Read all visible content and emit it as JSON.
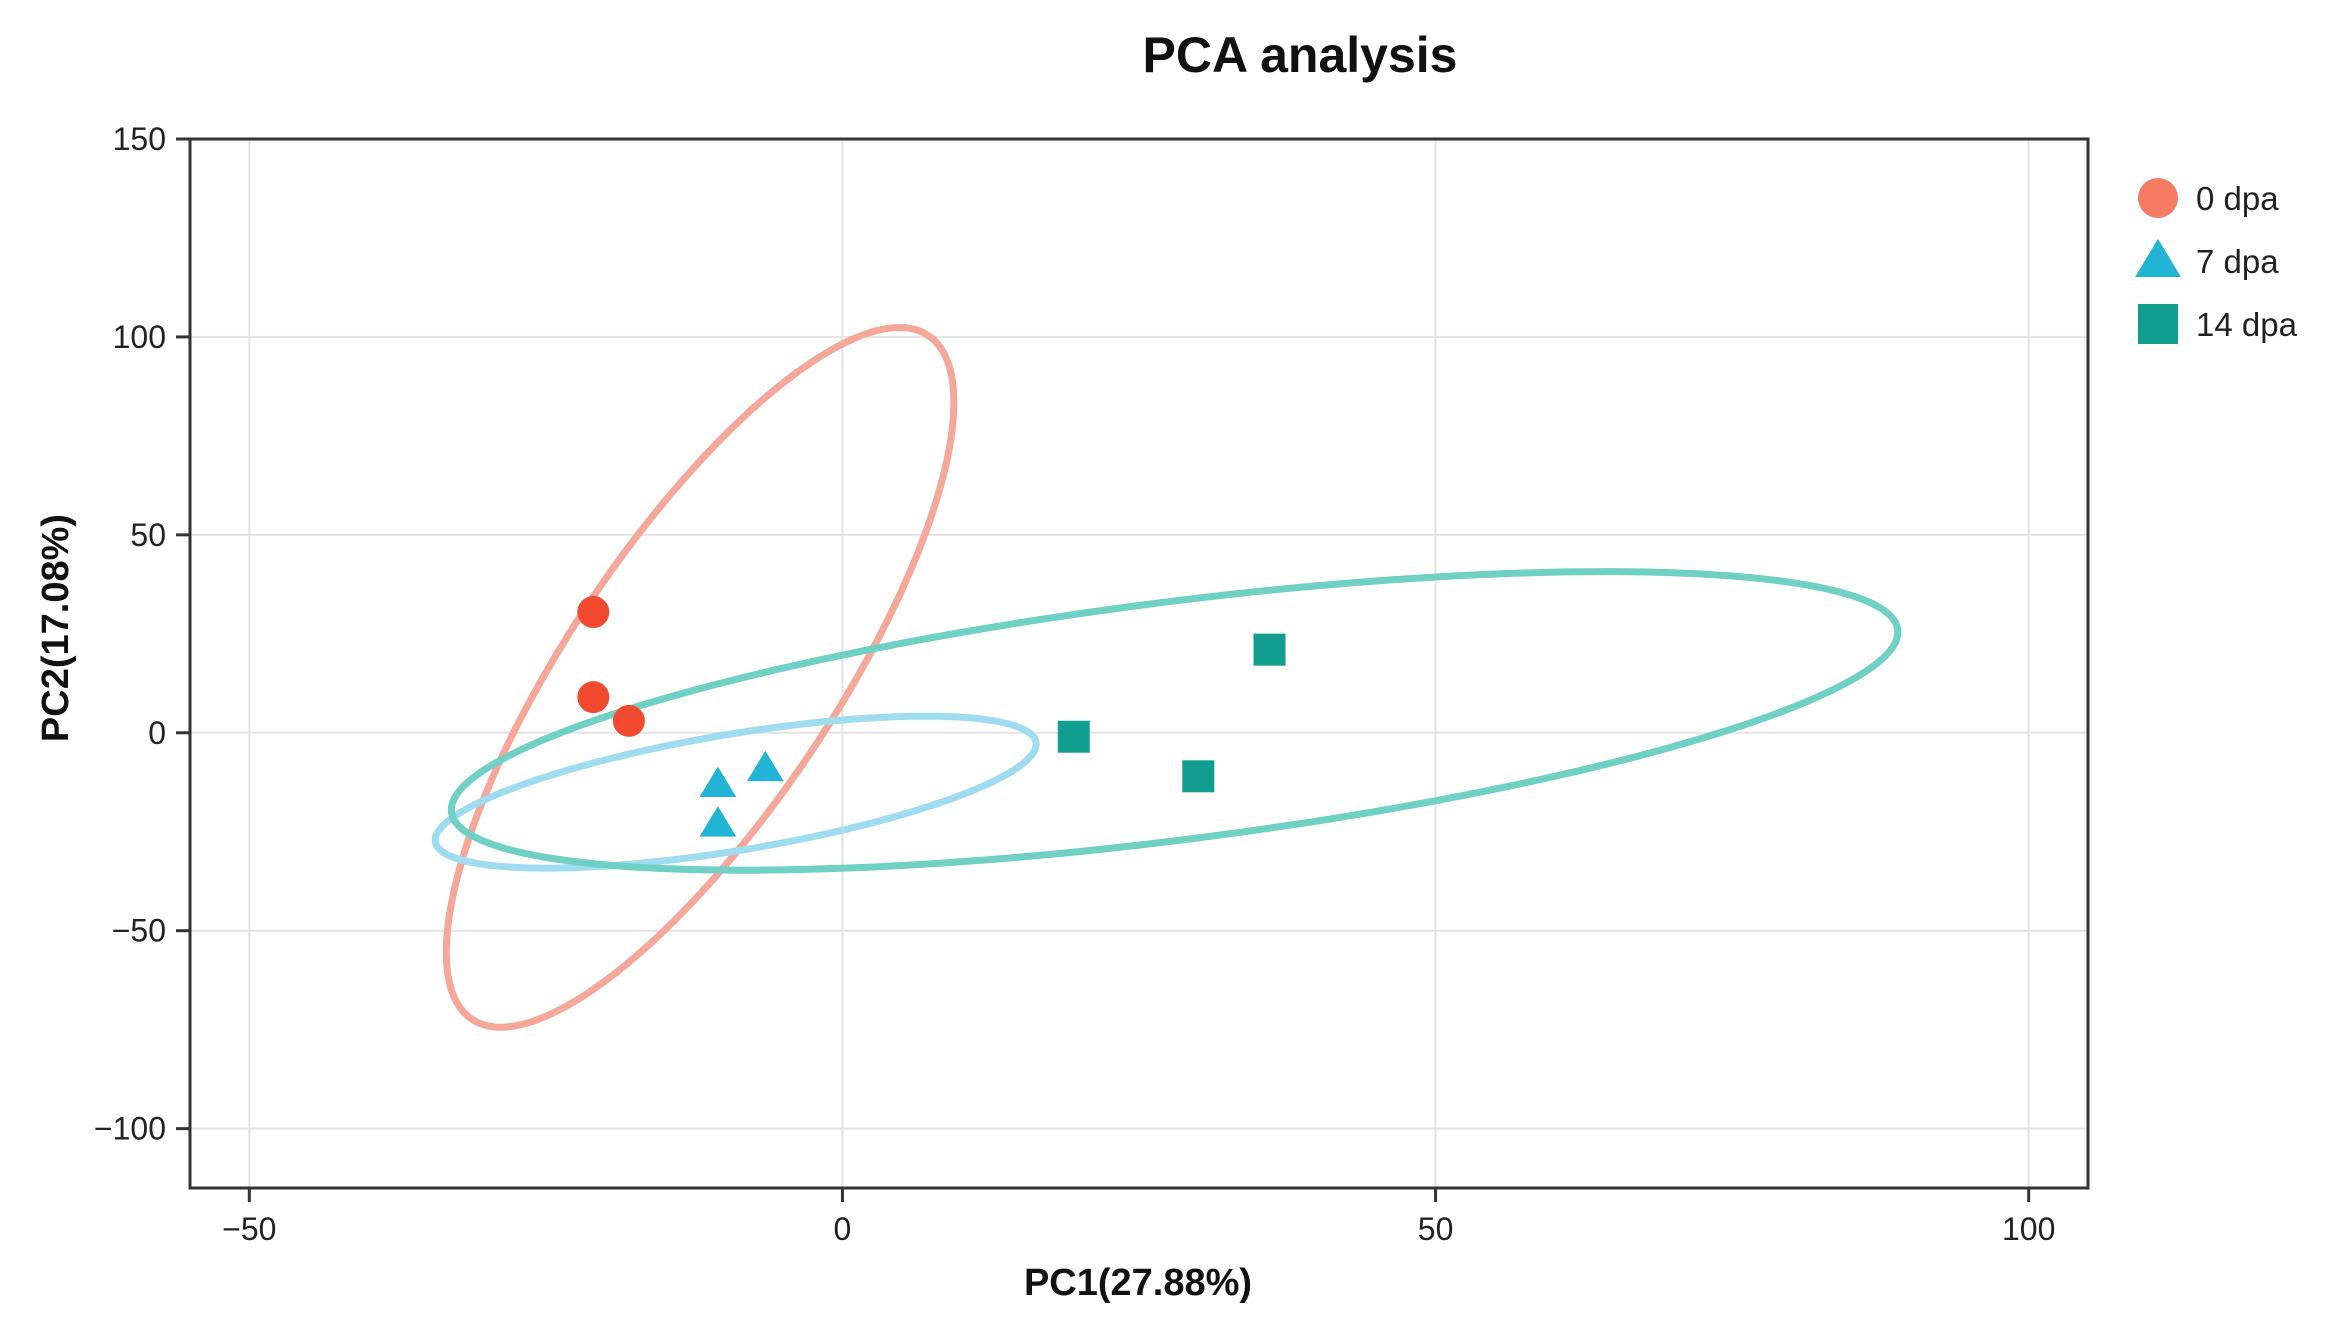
{
  "chart_data": {
    "type": "scatter",
    "title": "PCA analysis",
    "xlabel": "PC1(27.88%)",
    "ylabel": "PC2(17.08%)",
    "xlim": [
      -55,
      105
    ],
    "ylim": [
      -115,
      150
    ],
    "xticks": [
      -50,
      0,
      50,
      100
    ],
    "yticks": [
      -100,
      -50,
      0,
      50,
      100,
      150
    ],
    "xtick_labels": [
      "−50",
      "0",
      "50",
      "100"
    ],
    "ytick_labels": [
      "−100",
      "−50",
      "0",
      "50",
      "100",
      "150"
    ],
    "grid": true,
    "legend_position": "right",
    "series": [
      {
        "name": "0 dpa",
        "marker": "circle",
        "color": "#f24a2e",
        "legend_color": "#f77a63",
        "ellipse_color": "#f5a89a",
        "points": [
          [
            -21,
            30.5
          ],
          [
            -21,
            9
          ],
          [
            -18,
            3
          ]
        ],
        "ellipse": {
          "cx": -12,
          "cy": 14,
          "rx": 90,
          "ry": 13,
          "angle_deg": 79
        }
      },
      {
        "name": "7 dpa",
        "marker": "triangle",
        "color": "#21b4d4",
        "legend_color": "#21b4d4",
        "ellipse_color": "#9fdcef",
        "points": [
          [
            -10.5,
            -13
          ],
          [
            -10.5,
            -23
          ],
          [
            -6.5,
            -9
          ]
        ],
        "ellipse": {
          "cx": -9,
          "cy": -15,
          "rx": 29,
          "ry": 13,
          "angle_deg": 33
        }
      },
      {
        "name": "14 dpa",
        "marker": "square",
        "color": "#129e8f",
        "legend_color": "#129e8f",
        "ellipse_color": "#6fd0c4",
        "points": [
          [
            19.5,
            -1
          ],
          [
            30,
            -11
          ],
          [
            36,
            21
          ]
        ],
        "ellipse": {
          "cx": 28,
          "cy": 3,
          "rx": 66,
          "ry": 28,
          "angle_deg": 25
        }
      }
    ]
  }
}
